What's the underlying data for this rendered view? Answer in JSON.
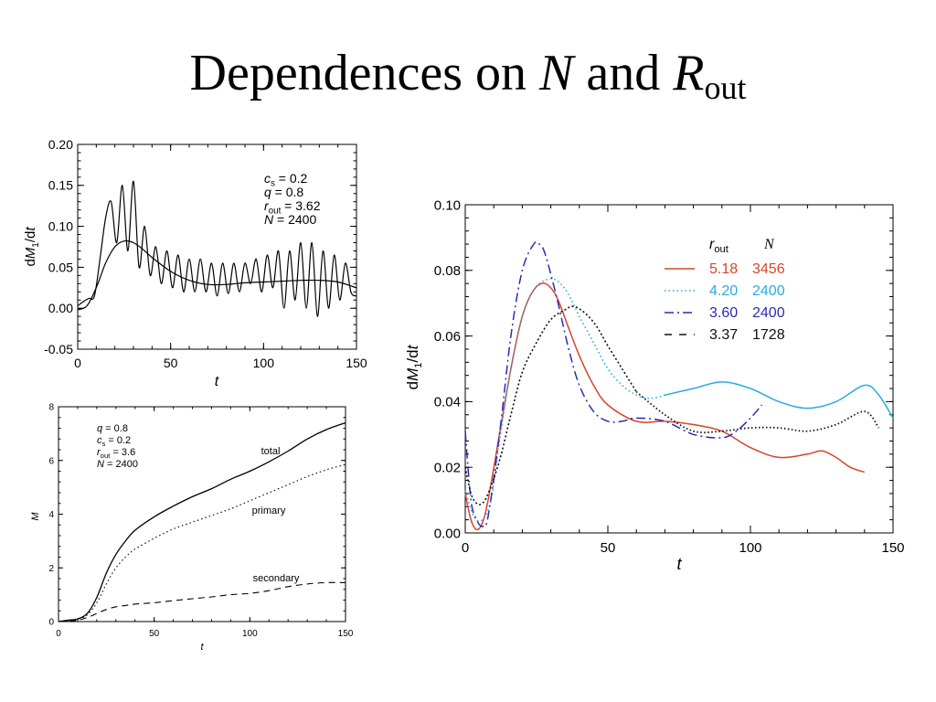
{
  "title": {
    "text_plain": "Dependences on",
    "n_symbol": "N",
    "and_word": "and",
    "r_symbol": "R",
    "r_subscript": "out"
  },
  "chart_data": [
    {
      "id": "top-left",
      "type": "line",
      "xlabel": "t",
      "ylabel": "dM1/dt",
      "xlim": [
        0,
        150
      ],
      "ylim": [
        -0.05,
        0.2
      ],
      "xticks": [
        0,
        50,
        100,
        150
      ],
      "yticks": [
        -0.05,
        0.0,
        0.05,
        0.1,
        0.15,
        0.2
      ],
      "ytick_labels": [
        "-0.05",
        "0.00",
        "0.05",
        "0.10",
        "0.15",
        "0.20"
      ],
      "annotation": [
        "cs = 0.2",
        "q = 0.8",
        "rout = 3.62",
        "N = 2400"
      ],
      "series": [
        {
          "kind": "oscillating",
          "x": [
            0,
            3,
            6,
            9,
            12,
            15,
            18,
            21,
            24,
            27,
            30,
            33,
            36,
            39,
            42,
            45,
            48,
            51,
            54,
            57,
            60,
            63,
            66,
            69,
            72,
            75,
            78,
            81,
            84,
            87,
            90,
            93,
            96,
            99,
            102,
            105,
            108,
            111,
            114,
            117,
            120,
            123,
            126,
            129,
            132,
            135,
            138,
            141,
            144,
            147,
            150
          ],
          "y": [
            0.003,
            0.008,
            0.012,
            0.015,
            0.06,
            0.11,
            0.13,
            0.08,
            0.15,
            0.07,
            0.155,
            0.05,
            0.1,
            0.04,
            0.075,
            0.03,
            0.07,
            0.025,
            0.065,
            0.02,
            0.06,
            0.02,
            0.06,
            0.02,
            0.055,
            0.015,
            0.055,
            0.018,
            0.055,
            0.02,
            0.055,
            0.03,
            0.06,
            0.02,
            0.065,
            0.025,
            0.07,
            0.0,
            0.07,
            0.01,
            0.08,
            0.0,
            0.08,
            -0.01,
            0.07,
            0.0,
            0.065,
            0.01,
            0.055,
            0.02,
            0.015
          ]
        },
        {
          "kind": "smooth",
          "x": [
            0,
            5,
            10,
            15,
            20,
            25,
            30,
            35,
            40,
            50,
            60,
            70,
            80,
            90,
            100,
            110,
            120,
            130,
            140,
            150
          ],
          "y": [
            -0.002,
            0.003,
            0.025,
            0.055,
            0.075,
            0.082,
            0.08,
            0.072,
            0.062,
            0.045,
            0.034,
            0.029,
            0.029,
            0.031,
            0.032,
            0.033,
            0.034,
            0.034,
            0.032,
            0.025
          ]
        }
      ]
    },
    {
      "id": "bottom-left",
      "type": "line",
      "xlabel": "t",
      "ylabel": "M",
      "xlim": [
        0,
        150
      ],
      "ylim": [
        0,
        8
      ],
      "xticks": [
        0,
        50,
        100,
        150
      ],
      "yticks": [
        0,
        2,
        4,
        6,
        8
      ],
      "annotation": [
        "q = 0.8",
        "cs = 0.2",
        "rout = 3.6",
        "N = 2400"
      ],
      "series": [
        {
          "name": "total",
          "style": "solid",
          "x": [
            0,
            5,
            10,
            15,
            20,
            25,
            30,
            35,
            40,
            50,
            60,
            70,
            80,
            90,
            100,
            110,
            120,
            130,
            140,
            150
          ],
          "y": [
            0,
            0.05,
            0.1,
            0.3,
            0.9,
            1.8,
            2.5,
            3.0,
            3.4,
            3.9,
            4.3,
            4.65,
            4.95,
            5.3,
            5.6,
            5.95,
            6.35,
            6.8,
            7.15,
            7.4
          ]
        },
        {
          "name": "primary",
          "style": "dotted",
          "x": [
            0,
            5,
            10,
            15,
            20,
            25,
            30,
            35,
            40,
            50,
            60,
            70,
            80,
            90,
            100,
            110,
            120,
            130,
            140,
            150
          ],
          "y": [
            0,
            0.03,
            0.08,
            0.25,
            0.7,
            1.4,
            2.0,
            2.4,
            2.7,
            3.1,
            3.45,
            3.7,
            3.95,
            4.2,
            4.5,
            4.8,
            5.1,
            5.4,
            5.65,
            5.85
          ]
        },
        {
          "name": "secondary",
          "style": "dashed",
          "x": [
            0,
            5,
            10,
            15,
            20,
            25,
            30,
            35,
            40,
            50,
            60,
            70,
            80,
            90,
            100,
            110,
            120,
            130,
            140,
            150
          ],
          "y": [
            0,
            0.02,
            0.05,
            0.15,
            0.3,
            0.45,
            0.55,
            0.6,
            0.65,
            0.7,
            0.78,
            0.85,
            0.92,
            1.0,
            1.05,
            1.15,
            1.3,
            1.4,
            1.45,
            1.45
          ]
        }
      ]
    },
    {
      "id": "right",
      "type": "line",
      "xlabel": "t",
      "ylabel": "dM1/dt",
      "xlim": [
        0,
        150
      ],
      "ylim": [
        0,
        0.1
      ],
      "xticks": [
        0,
        50,
        100,
        150
      ],
      "yticks": [
        0.0,
        0.02,
        0.04,
        0.06,
        0.08,
        0.1
      ],
      "ytick_labels": [
        "0.00",
        "0.02",
        "0.04",
        "0.06",
        "0.08",
        "0.10"
      ],
      "legend_header": {
        "col1": "rout",
        "col2": "N"
      },
      "series": [
        {
          "rout": "5.18",
          "N": "3456",
          "color": "#d9442a",
          "style": "solid",
          "x": [
            0,
            2,
            4,
            6,
            8,
            12,
            16,
            20,
            24,
            28,
            32,
            36,
            40,
            45,
            50,
            60,
            70,
            80,
            90,
            100,
            110,
            120,
            125,
            130,
            135,
            140
          ],
          "y": [
            0.012,
            0.004,
            0.001,
            0.003,
            0.01,
            0.03,
            0.05,
            0.066,
            0.074,
            0.076,
            0.072,
            0.063,
            0.054,
            0.045,
            0.039,
            0.034,
            0.034,
            0.033,
            0.031,
            0.026,
            0.023,
            0.024,
            0.025,
            0.023,
            0.02,
            0.0185
          ]
        },
        {
          "rout": "4.20",
          "N": "2400",
          "color": "#2aaae0",
          "style": "dotted-solid",
          "x": [
            0,
            3,
            6,
            9,
            12,
            16,
            20,
            24,
            28,
            32,
            36,
            40,
            45,
            50,
            55,
            60,
            65,
            70,
            80,
            90,
            100,
            110,
            120,
            130,
            140,
            145,
            150
          ],
          "y": [
            0.013,
            0.005,
            0.004,
            0.01,
            0.028,
            0.05,
            0.066,
            0.074,
            0.077,
            0.077,
            0.073,
            0.066,
            0.058,
            0.05,
            0.045,
            0.042,
            0.041,
            0.042,
            0.044,
            0.046,
            0.044,
            0.04,
            0.038,
            0.04,
            0.045,
            0.042,
            0.035
          ]
        },
        {
          "rout": "3.60",
          "N": "2400",
          "color": "#2b2bb5",
          "style": "dashdot",
          "x": [
            0,
            2,
            4,
            6,
            8,
            12,
            16,
            20,
            24,
            26,
            28,
            32,
            36,
            40,
            45,
            50,
            55,
            60,
            70,
            80,
            90,
            95,
            100,
            104
          ],
          "y": [
            0.031,
            0.01,
            0.004,
            0.002,
            0.005,
            0.03,
            0.06,
            0.08,
            0.088,
            0.088,
            0.085,
            0.072,
            0.057,
            0.045,
            0.037,
            0.034,
            0.034,
            0.035,
            0.034,
            0.03,
            0.029,
            0.031,
            0.035,
            0.039
          ]
        },
        {
          "rout": "3.37",
          "N": "1728",
          "color": "#111111",
          "style": "dashed",
          "x": [
            0,
            2,
            4,
            6,
            8,
            12,
            16,
            20,
            25,
            30,
            35,
            38,
            42,
            46,
            50,
            55,
            60,
            70,
            80,
            90,
            100,
            110,
            120,
            130,
            140,
            145
          ],
          "y": [
            0.02,
            0.012,
            0.009,
            0.009,
            0.012,
            0.022,
            0.036,
            0.049,
            0.058,
            0.065,
            0.068,
            0.069,
            0.067,
            0.063,
            0.057,
            0.05,
            0.043,
            0.036,
            0.031,
            0.031,
            0.032,
            0.032,
            0.031,
            0.033,
            0.037,
            0.032
          ]
        }
      ]
    }
  ]
}
